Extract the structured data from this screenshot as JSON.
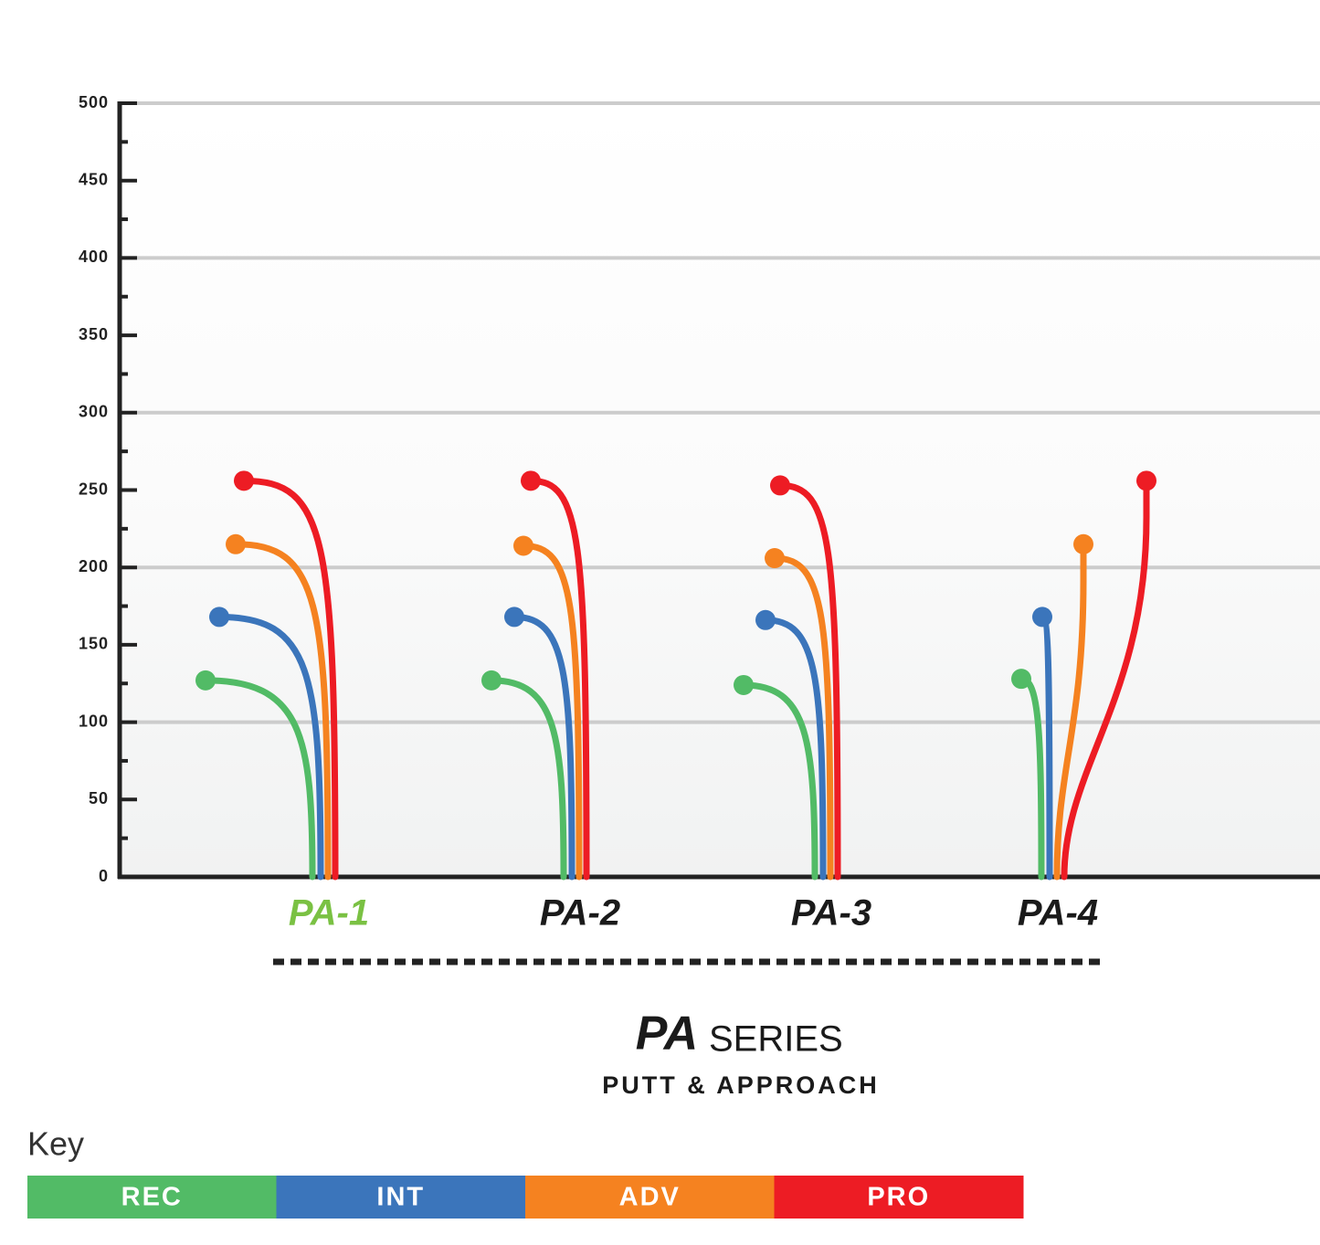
{
  "chart_data": {
    "type": "flight",
    "categories": [
      "PA-1",
      "PA-2",
      "PA-3",
      "PA-4"
    ],
    "category_colors": [
      "#7ac143",
      "#1a1a1a",
      "#1a1a1a",
      "#1a1a1a"
    ],
    "series": [
      {
        "name": "REC",
        "color": "#52bb66",
        "values": [
          127,
          127,
          124,
          128
        ]
      },
      {
        "name": "INT",
        "color": "#3b75bb",
        "values": [
          168,
          168,
          166,
          168
        ]
      },
      {
        "name": "ADV",
        "color": "#f58220",
        "values": [
          215,
          214,
          206,
          215
        ]
      },
      {
        "name": "PRO",
        "color": "#ed1c24",
        "values": [
          256,
          256,
          253,
          256
        ]
      }
    ],
    "ylim": [
      0,
      500
    ],
    "yticks": [
      0,
      50,
      100,
      150,
      200,
      250,
      300,
      350,
      400,
      450,
      500
    ],
    "minor_yticks": [
      25,
      75,
      125,
      175,
      225,
      275,
      325,
      375,
      425,
      475
    ],
    "gridlines": [
      100,
      200,
      300,
      400,
      500
    ],
    "logo": "PA",
    "title": "SERIES",
    "subtitle": "PUTT & APPROACH",
    "legend_title": "Key"
  }
}
